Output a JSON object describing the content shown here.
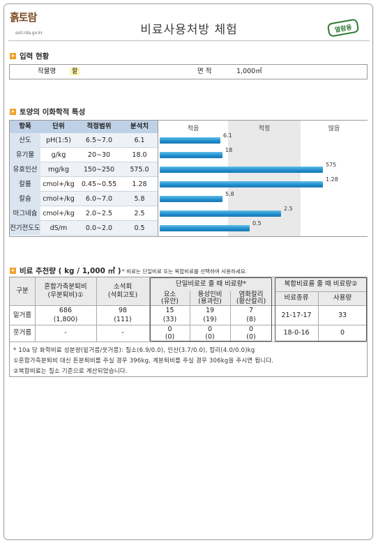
{
  "header": {
    "logo_text": "흙토람",
    "logo_sub": "soil.rda.go.kr",
    "title": "비료사용처방 체험",
    "stamp": "열람용"
  },
  "input": {
    "section_title": "입력 현황",
    "crop_label": "작물명",
    "crop_value": "팥",
    "area_label": "면 적",
    "area_value": "1,000㎡"
  },
  "soil": {
    "section_title": "토양의 이화학적 특성",
    "headers": [
      "항목",
      "단위",
      "적정범위",
      "분석치"
    ],
    "scale": [
      "적음",
      "적정",
      "많음"
    ],
    "rows": [
      {
        "name": "산도",
        "unit": "pH(1:5)",
        "range": "6.5∼7.0",
        "value": "6.1",
        "bar_label": "6.1",
        "level": 0.29
      },
      {
        "name": "유기물",
        "unit": "g/kg",
        "range": "20∼30",
        "value": "18.0",
        "bar_label": "18",
        "level": 0.3
      },
      {
        "name": "유효인산",
        "unit": "mg/kg",
        "range": "150∼250",
        "value": "575.0",
        "bar_label": "575",
        "level": 0.78
      },
      {
        "name": "칼륨",
        "unit": "cmol+/kg",
        "range": "0.45∼0.55",
        "value": "1.28",
        "bar_label": "1.28",
        "level": 0.78
      },
      {
        "name": "칼슘",
        "unit": "cmol+/kg",
        "range": "6.0∼7.0",
        "value": "5.8",
        "bar_label": "5.8",
        "level": 0.3
      },
      {
        "name": "마그네슘",
        "unit": "cmol+/kg",
        "range": "2.0∼2.5",
        "value": "2.5",
        "bar_label": "2.5",
        "level": 0.58
      },
      {
        "name": "전기전도도",
        "unit": "dS/m",
        "range": "0.0∼2.0",
        "value": "0.5",
        "bar_label": "0.5",
        "level": 0.43
      }
    ]
  },
  "fertilizer": {
    "section_title": "비료 추천량 ( kg / 1,000 ㎡ )",
    "note": "* 비료는 단일비료 또는 복합비료를 선택하여 사용하세요.",
    "h_division": "구분",
    "h_manure": [
      "혼합가축분퇴비",
      "(우분퇴비)①"
    ],
    "h_lime": [
      "소석회",
      "(석회고토)"
    ],
    "h_single": "단일비료로 줄 때 비료량*",
    "h_urea": [
      "요소",
      "(유안)"
    ],
    "h_phos": [
      "용성인비",
      "(용과린)"
    ],
    "h_potash": [
      "염화칼리",
      "(황산칼리)"
    ],
    "h_compound": "복합비료를 줄 때 비료량②",
    "h_compound_type": "비료종류",
    "h_compound_amount": "사용량",
    "rows": [
      {
        "label": "밑거름",
        "manure": [
          "686",
          "(1,800)"
        ],
        "lime": [
          "98",
          "(111)"
        ],
        "urea": [
          "15",
          "(33)"
        ],
        "phos": [
          "19",
          "(19)"
        ],
        "potash": [
          "7",
          "(8)"
        ],
        "compound_type": "21-17-17",
        "compound_amount": "33"
      },
      {
        "label": "웃거름",
        "manure": [
          "-",
          ""
        ],
        "lime": [
          "-",
          ""
        ],
        "urea": [
          "0",
          "(0)"
        ],
        "phos": [
          "0",
          "(0)"
        ],
        "potash": [
          "0",
          "(0)"
        ],
        "compound_type": "18-0-16",
        "compound_amount": "0"
      }
    ],
    "footnotes": [
      "* 10a 당 화학비료 성분량(밑거름/웃거름): 질소(6.9/0.0), 인산(3.7/0.0), 칼리(4.0/0.0)kg",
      "①혼합가축분퇴비 대신 돈분퇴비를 주실 경우 396kg, 계분퇴비를 주실 경우 306kg을 주시면 됩니다.",
      "②복합비료는 질소 기준으로 계산되었습니다."
    ]
  },
  "colors": {
    "accent": "#f0a22b",
    "bar": "#1e8ccc",
    "header_bg": "#bfd1e6",
    "stamp": "#2f7a35"
  }
}
